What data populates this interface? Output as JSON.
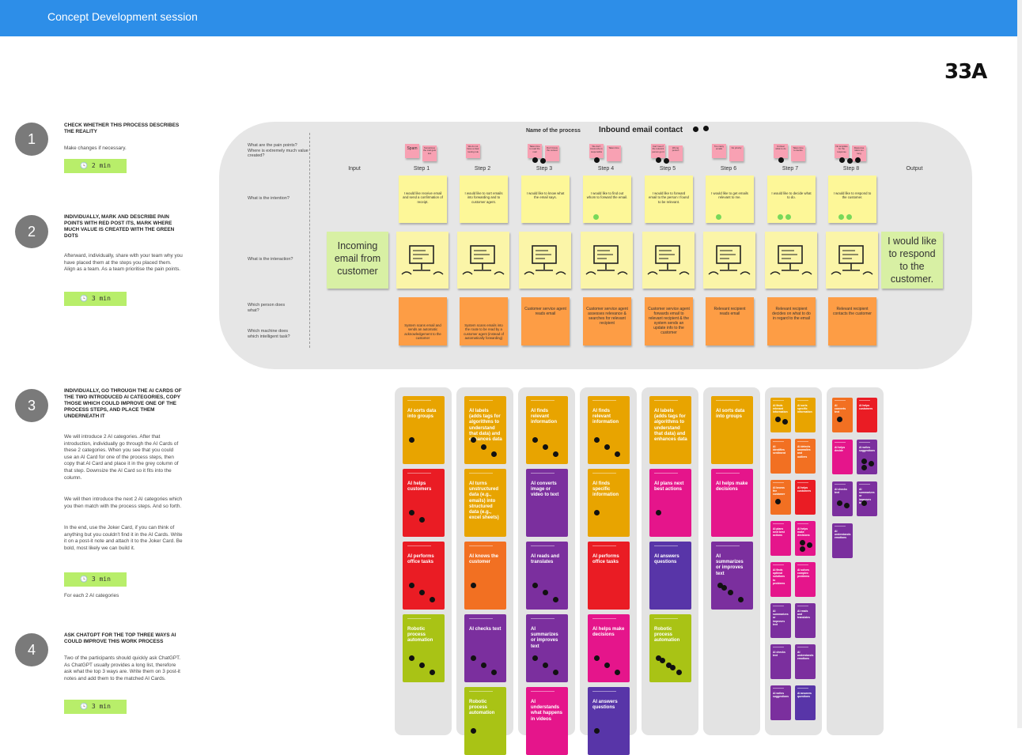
{
  "header": {
    "title": "Concept Development session"
  },
  "board_id": "33A",
  "instructions": [
    {
      "number": "1",
      "title": "CHECK WHETHER THIS PROCESS DESCRIBES THE REALITY",
      "body": [
        "Make changes if necessary."
      ],
      "timer": "2 min",
      "note": ""
    },
    {
      "number": "2",
      "title": "INDIVIDUALLY, MARK AND DESCRIBE PAIN POINTS WITH RED POST ITS, MARK WHERE MUCH VALUE IS CREATED WITH THE GREEN DOTS",
      "body": [
        "Afterward, individually, share with your team why you have placed them at the steps you placed them. Align as a team. As a team prioritise the pain points."
      ],
      "timer": "3 min",
      "note": ""
    },
    {
      "number": "3",
      "title": "INDIVIDUALLY, GO THROUGH THE AI CARDS OF THE TWO INTRODUCED AI CATEGORIES, COPY THOSE WHICH COULD IMPROVE ONE OF THE PROCESS STEPS, AND PLACE THEM UNDERNEATH IT",
      "body": [
        "We will introduce 2 AI categories. After that introduction, individually go through the AI Cards of these 2 categories. When you see that you could use an AI Card for one of the process steps, then copy that AI Card and place it in the grey column of that step. Downsize the AI Card so it fits into the column.",
        "We will then introduce the next 2 AI categories which you then match with the process steps. And so forth.",
        "In the end, use the Joker Card, if you can think of anything but you couldn't find it in the AI Cards. Write it on a post-it note and attach it to the Joker Card. Be bold, most likely we can build it."
      ],
      "timer": "3 min",
      "note": "For each 2 AI categories"
    },
    {
      "number": "4",
      "title": "ASK CHATGPT FOR THE TOP THREE WAYS AI COULD IMPROVE THIS WORK PROCESS",
      "body": [
        "Two of the participants should quickly ask ChatGPT. As ChatGPT usually provides a long list, therefore ask what the top 3 ways are. Write them on 3 post-it notes and add them to the matched AI Cards."
      ],
      "timer": "3 min",
      "note": ""
    }
  ],
  "process": {
    "name_label": "Name of the process",
    "name": "Inbound email contact",
    "row_labels": {
      "pain": "What are the pain points? Where is extremely much value created?",
      "intention": "What is the intention?",
      "interaction": "What is the interaction?",
      "person": "Which person does what?",
      "machine": "Which machine does which intelligent task?"
    },
    "input_label": "Input",
    "output_label": "Output",
    "input_text": "Incoming email from customer",
    "output_text": "I would like to respond to the customer.",
    "steps": [
      {
        "label": "Step 1",
        "pain": [
          "Spam",
          "Sometimes the mail gets lost"
        ],
        "intention": "I would like receive email and send a confirmation of receipt.",
        "person": "",
        "machine": "System scans email and sends an automatic acknowledgement to the customer",
        "green": 0,
        "black": 0
      },
      {
        "label": "Step 2",
        "pain": [
          "We do not have a clear routing rule"
        ],
        "intention": "I would like to sort emails into forwarding and to customer agent.",
        "person": "",
        "machine": "System scans emails into the route to be read by a customer agent (instead of automatically forwarding)",
        "green": 0,
        "black": 0
      },
      {
        "label": "Step 3",
        "pain": [
          "Takes time to read the mail",
          "Don't know the context"
        ],
        "intention": "I would like to know what the email says.",
        "person": "Customer service agent reads email",
        "machine": "",
        "green": 0,
        "black": 2
      },
      {
        "label": "Step 4",
        "pain": [
          "We don't know who is responsible",
          "Takes time"
        ],
        "intention": "I would like to find out whom to forward the email.",
        "person": "Customer service agent assesses relevance & searches for relevant recipient",
        "machine": "",
        "green": 1,
        "black": 1
      },
      {
        "label": "Step 5",
        "pain": [
          "Can't see if the relevant person got it",
          "Wrong person"
        ],
        "intention": "I would like to forward email to the person I found to be relevant.",
        "person": "Customer service agent forwards email to relevant recipient & the system sends an update info to the customer",
        "machine": "",
        "green": 0,
        "black": 2
      },
      {
        "label": "Step 6",
        "pain": [
          "Too many emails",
          "No priority"
        ],
        "intention": "I would like to get emails relevant to me.",
        "person": "Relevant recipient reads email",
        "machine": "",
        "green": 1,
        "black": 0
      },
      {
        "label": "Step 7",
        "pain": [
          "Unclear what to do",
          "Takes time to decide"
        ],
        "intention": "I would like to decide what to do.",
        "person": "Relevant recipient decides on what to do in regard to the email",
        "machine": "",
        "green": 2,
        "black": 1
      },
      {
        "label": "Step 8",
        "pain": [
          "No template for the response",
          "Response takes too long"
        ],
        "intention": "I would like to respond to the customer.",
        "person": "Relevant recipient contacts the customer",
        "machine": "",
        "green": 2,
        "black": 3
      }
    ]
  },
  "ai_columns": [
    {
      "cards": [
        {
          "title": "AI sorts data into groups",
          "color": "#e8a400",
          "dots": 1
        },
        {
          "title": "AI helps customers",
          "color": "#ea1c24",
          "dots": 2
        },
        {
          "title": "AI performs office tasks",
          "color": "#ea1c24",
          "dots": 3
        },
        {
          "title": "Robotic process automation",
          "color": "#a9c315",
          "dots": 3
        }
      ]
    },
    {
      "cards": [
        {
          "title": "AI labels (adds tags for algorithms to understand that data) and enhances data",
          "color": "#e8a400",
          "dots": 3
        },
        {
          "title": "AI turns unstructured data (e.g., emails) into structured data (e.g., excel sheets)",
          "color": "#e8a400",
          "dots": 0
        },
        {
          "title": "AI knows the customer",
          "color": "#f27022",
          "dots": 1
        },
        {
          "title": "AI checks text",
          "color": "#7b2f9e",
          "dots": 3
        },
        {
          "title": "Robotic process automation",
          "color": "#a9c315",
          "dots": 1
        }
      ]
    },
    {
      "cards": [
        {
          "title": "AI finds relevant information",
          "color": "#e8a400",
          "dots": 3
        },
        {
          "title": "AI converts image or video to text",
          "color": "#7b2f9e",
          "dots": 0
        },
        {
          "title": "AI reads and translates",
          "color": "#7b2f9e",
          "dots": 3
        },
        {
          "title": "AI summarizes or improves text",
          "color": "#7b2f9e",
          "dots": 3
        },
        {
          "title": "AI understands what happens in videos",
          "color": "#e5158b",
          "dots": 0
        }
      ]
    },
    {
      "cards": [
        {
          "title": "AI finds relevant information",
          "color": "#e8a400",
          "dots": 3
        },
        {
          "title": "AI finds specific information",
          "color": "#e8a400",
          "dots": 1
        },
        {
          "title": "AI performs office tasks",
          "color": "#ea1c24",
          "dots": 0
        },
        {
          "title": "AI helps make decisions",
          "color": "#e5158b",
          "dots": 3
        },
        {
          "title": "AI answers questions",
          "color": "#5835a8",
          "dots": 1
        }
      ]
    },
    {
      "cards": [
        {
          "title": "AI labels (adds tags for algorithms to understand that data) and enhances data",
          "color": "#e8a400",
          "dots": 0
        },
        {
          "title": "AI plans next best actions",
          "color": "#e5158b",
          "dots": 1
        },
        {
          "title": "AI answers questions",
          "color": "#5835a8",
          "dots": 0
        },
        {
          "title": "Robotic process automation",
          "color": "#a9c315",
          "dots": 5
        }
      ]
    },
    {
      "cards": [
        {
          "title": "AI sorts data into groups",
          "color": "#e8a400",
          "dots": 0
        },
        {
          "title": "AI helps make decisions",
          "color": "#e5158b",
          "dots": 0
        },
        {
          "title": "AI summarizes or improves text",
          "color": "#7b2f9e",
          "dots": 4
        }
      ]
    }
  ],
  "ai_small_columns": [
    {
      "cards": [
        {
          "title": "AI finds relevant information",
          "color": "#e8a400",
          "dots": 2
        },
        {
          "title": "AI sorts specific information",
          "color": "#e8a400",
          "dots": 0
        },
        {
          "title": "AI identifies sentiment",
          "color": "#f27022",
          "dots": 0
        },
        {
          "title": "AI detects anomalies and outliers",
          "color": "#f27022",
          "dots": 0
        },
        {
          "title": "AI knows the customer",
          "color": "#f27022",
          "dots": 1
        },
        {
          "title": "AI helps customers",
          "color": "#ea1c24",
          "dots": 0
        },
        {
          "title": "AI plans next best actions",
          "color": "#e5158b",
          "dots": 0
        },
        {
          "title": "AI helps make decisions",
          "color": "#e5158b",
          "dots": 3
        },
        {
          "title": "AI finds optimal solutions to problems",
          "color": "#e5158b",
          "dots": 0
        },
        {
          "title": "AI solves complex problems",
          "color": "#e5158b",
          "dots": 0
        },
        {
          "title": "AI summarizes or improves text",
          "color": "#7b2f9e",
          "dots": 0
        },
        {
          "title": "AI reads and translates",
          "color": "#7b2f9e",
          "dots": 0
        },
        {
          "title": "AI checks text",
          "color": "#7b2f9e",
          "dots": 0
        },
        {
          "title": "AI understands emotions",
          "color": "#7b2f9e",
          "dots": 0
        },
        {
          "title": "AI writes suggestions",
          "color": "#7b2f9e",
          "dots": 0
        },
        {
          "title": "AI answers questions",
          "color": "#5835a8",
          "dots": 0
        }
      ]
    },
    {
      "cards": [
        {
          "title": "AI converts text",
          "color": "#f27022",
          "dots": 1
        },
        {
          "title": "AI helps customers",
          "color": "#ea1c24",
          "dots": 0
        },
        {
          "title": "AI helps decide",
          "color": "#e5158b",
          "dots": 0
        },
        {
          "title": "AI writes suggestions",
          "color": "#7b2f9e",
          "dots": 3
        },
        {
          "title": "AI checks text",
          "color": "#7b2f9e",
          "dots": 2
        },
        {
          "title": "AI summarizes or improves text",
          "color": "#7b2f9e",
          "dots": 1
        },
        {
          "title": "AI understands emotions",
          "color": "#7b2f9e",
          "dots": 0
        }
      ]
    }
  ]
}
